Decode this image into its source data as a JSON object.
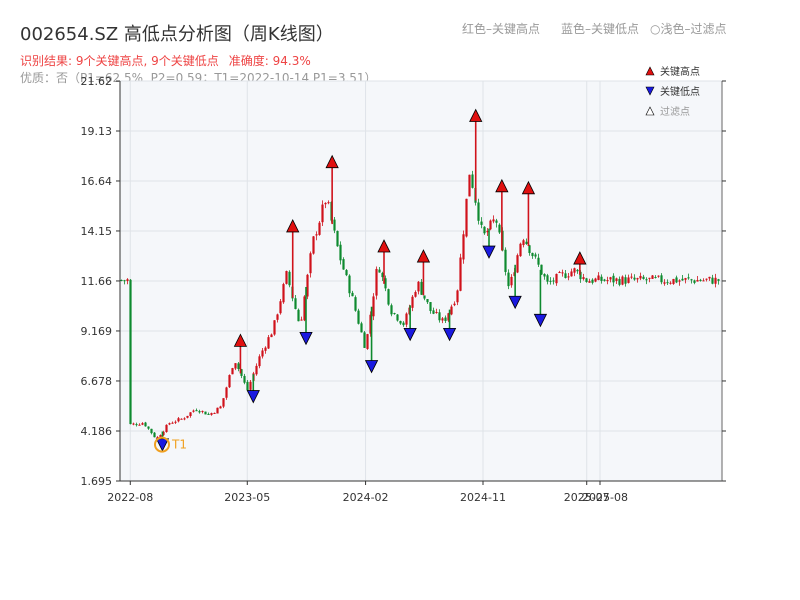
{
  "header": {
    "title": "002654.SZ 高低点分析图（周K线图）",
    "result_text": "识别结果: 9个关键高点, 9个关键低点",
    "accuracy_text": "准确度: 94.3%",
    "quality_text": "优质：否（P1=62.5%, P2=0.59；T1=2022-10-14 P1=3.51）",
    "legend_high": "红色–关键高点",
    "legend_low": "蓝色–关键低点",
    "legend_filtered": "○浅色–过滤点"
  },
  "colors": {
    "up": "#d0121b",
    "down": "#0e8a2f",
    "high_marker": "#e01010",
    "low_marker": "#1a1ae0",
    "t1": "#f0a020",
    "plot_bg": "#f5f7fa",
    "grid": "#dfe3e8"
  },
  "chart_data": {
    "type": "candlestick",
    "title": "002654.SZ 高低点分析图（周K线图）",
    "x_ticks": [
      "2022-08",
      "2023-05",
      "2024-02",
      "2024-11",
      "2025-07",
      "2025-08"
    ],
    "y_ticks": [
      "1.695",
      "4.186",
      "6.678",
      "9.169",
      "11.66",
      "14.15",
      "16.64",
      "19.13",
      "21.62"
    ],
    "ylim": [
      1.695,
      21.62
    ],
    "legend_placement": "top-right",
    "legend": [
      "关键高点",
      "关键低点",
      "过滤点"
    ],
    "key_highs": [
      {
        "date": "2023-04",
        "value": 8.7
      },
      {
        "date": "2023-08",
        "value": 14.4
      },
      {
        "date": "2023-11",
        "value": 17.6
      },
      {
        "date": "2024-03",
        "value": 13.4
      },
      {
        "date": "2024-06",
        "value": 12.9
      },
      {
        "date": "2024-10",
        "value": 19.9
      },
      {
        "date": "2024-12",
        "value": 16.4
      },
      {
        "date": "2025-02",
        "value": 16.3
      },
      {
        "date": "2025-06",
        "value": 12.8
      }
    ],
    "key_lows": [
      {
        "date": "2022-10",
        "value": 3.5
      },
      {
        "date": "2023-05",
        "value": 5.9
      },
      {
        "date": "2023-09",
        "value": 8.8
      },
      {
        "date": "2024-02",
        "value": 7.4
      },
      {
        "date": "2024-05",
        "value": 9.0
      },
      {
        "date": "2024-08",
        "value": 9.0
      },
      {
        "date": "2024-11",
        "value": 13.1
      },
      {
        "date": "2025-01",
        "value": 10.6
      },
      {
        "date": "2025-03",
        "value": 9.7
      }
    ],
    "t1": {
      "label": "T1",
      "date": "2022-10-14",
      "value": 3.51
    },
    "close_path": [
      [
        "2022-08",
        4.5
      ],
      [
        "2022-09",
        4.6
      ],
      [
        "2022-10",
        3.8
      ],
      [
        "2022-11",
        4.6
      ],
      [
        "2022-12",
        4.8
      ],
      [
        "2023-01",
        5.3
      ],
      [
        "2023-02",
        5.0
      ],
      [
        "2023-03",
        5.4
      ],
      [
        "2023-04",
        7.8
      ],
      [
        "2023-05",
        6.2
      ],
      [
        "2023-06",
        8.0
      ],
      [
        "2023-07",
        9.3
      ],
      [
        "2023-08",
        12.0
      ],
      [
        "2023-09",
        9.4
      ],
      [
        "2023-10",
        13.6
      ],
      [
        "2023-11",
        15.8
      ],
      [
        "2023-12",
        13.0
      ],
      [
        "2024-01",
        10.8
      ],
      [
        "2024-02",
        8.3
      ],
      [
        "2024-03",
        12.6
      ],
      [
        "2024-04",
        10.2
      ],
      [
        "2024-05",
        9.5
      ],
      [
        "2024-06",
        11.6
      ],
      [
        "2024-07",
        10.2
      ],
      [
        "2024-08",
        9.6
      ],
      [
        "2024-09",
        11.0
      ],
      [
        "2024-10",
        17.2
      ],
      [
        "2024-11",
        13.8
      ],
      [
        "2024-12",
        14.8
      ],
      [
        "2025-01",
        11.2
      ],
      [
        "2025-02",
        14.0
      ],
      [
        "2025-03",
        12.8
      ],
      [
        "2025-04",
        11.5
      ],
      [
        "2025-05",
        11.9
      ],
      [
        "2025-06",
        12.2
      ],
      [
        "2025-07",
        11.7
      ]
    ]
  }
}
